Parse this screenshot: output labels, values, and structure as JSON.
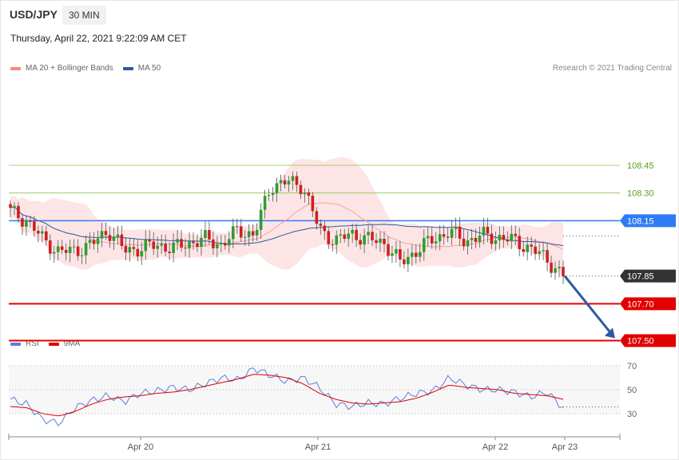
{
  "header": {
    "pair": "USD/JPY",
    "timeframe": "30 MIN",
    "datetime": "Thursday, April 22, 2021 9:22:09 AM CET",
    "credit": "Research © 2021 Trading Central"
  },
  "legend_main": [
    {
      "label": "MA 20 + Bollinger Bands",
      "color": "#f28b82"
    },
    {
      "label": "MA 50",
      "color": "#2c5aa0"
    }
  ],
  "legend_rsi": [
    {
      "label": "RSI",
      "color": "#5b7fd6"
    },
    {
      "label": "9MA",
      "color": "#e00000"
    }
  ],
  "colors": {
    "up_candle": "#2e9e2e",
    "down_candle": "#d11f1f",
    "bollinger_fill": "#fde0e0",
    "ma20": "#f4a0a0",
    "ma50": "#2c5aa0",
    "resistance": "#8bc34a",
    "pivot": "#2f7bf5",
    "support": "#e00000",
    "current": "#333333",
    "arrow": "#2c5aa0"
  },
  "chart_data": [
    {
      "type": "candlestick",
      "title": "USD/JPY 30 MIN",
      "x_ticks": [
        "Apr 20",
        "Apr 21",
        "Apr 22",
        "Apr 23"
      ],
      "ylim": [
        107.45,
        108.62
      ],
      "price_points": [
        [
          "Apr 19 13:00",
          108.2
        ],
        [
          "Apr 19 15:00",
          108.15
        ],
        [
          "Apr 19 17:00",
          108.05
        ],
        [
          "Apr 19 19:00",
          107.98
        ],
        [
          "Apr 19 21:00",
          107.99
        ],
        [
          "Apr 19 23:00",
          108.02
        ],
        [
          "Apr 20 01:00",
          108.1
        ],
        [
          "Apr 20 03:00",
          107.99
        ],
        [
          "Apr 20 05:00",
          108.0
        ],
        [
          "Apr 20 07:00",
          108.02
        ],
        [
          "Apr 20 09:00",
          108.0
        ],
        [
          "Apr 20 11:00",
          108.03
        ],
        [
          "Apr 20 13:00",
          108.05
        ],
        [
          "Apr 20 15:00",
          108.02
        ],
        [
          "Apr 20 17:00",
          108.1
        ],
        [
          "Apr 20 19:00",
          108.07
        ],
        [
          "Apr 20 21:00",
          108.34
        ],
        [
          "Apr 20 23:00",
          108.36
        ],
        [
          "Apr 21 01:00",
          108.34
        ],
        [
          "Apr 21 03:00",
          108.1
        ],
        [
          "Apr 21 05:00",
          108.04
        ],
        [
          "Apr 21 07:00",
          108.08
        ],
        [
          "Apr 21 09:00",
          108.05
        ],
        [
          "Apr 21 11:00",
          108.03
        ],
        [
          "Apr 21 13:00",
          107.92
        ],
        [
          "Apr 21 15:00",
          107.99
        ],
        [
          "Apr 21 17:00",
          108.05
        ],
        [
          "Apr 21 19:00",
          108.09
        ],
        [
          "Apr 21 21:00",
          108.04
        ],
        [
          "Apr 21 23:00",
          108.07
        ],
        [
          "Apr 22 01:00",
          108.06
        ],
        [
          "Apr 22 03:00",
          108.04
        ],
        [
          "Apr 22 05:00",
          108.0
        ],
        [
          "Apr 22 07:00",
          107.94
        ],
        [
          "Apr 22 09:00",
          107.85
        ]
      ],
      "price_levels": [
        {
          "label": "108.45",
          "value": 108.45,
          "kind": "resistance"
        },
        {
          "label": "108.30",
          "value": 108.3,
          "kind": "resistance"
        },
        {
          "label": "108.15",
          "value": 108.15,
          "kind": "pivot"
        },
        {
          "label": "107.85",
          "value": 107.85,
          "kind": "current"
        },
        {
          "label": "107.70",
          "value": 107.7,
          "kind": "support"
        },
        {
          "label": "107.50",
          "value": 107.5,
          "kind": "support"
        }
      ],
      "projection": {
        "from": 107.85,
        "to": 107.5,
        "direction": "down"
      }
    },
    {
      "type": "line",
      "title": "RSI",
      "ylim": [
        20,
        75
      ],
      "y_ticks": [
        "70",
        "50",
        "30"
      ],
      "series": [
        {
          "name": "RSI",
          "values": [
            42,
            38,
            25,
            22,
            35,
            41,
            45,
            40,
            47,
            49,
            52,
            50,
            55,
            60,
            58,
            68,
            62,
            57,
            60,
            52,
            38,
            36,
            39,
            38,
            43,
            47,
            49,
            60,
            54,
            50,
            50,
            48,
            44,
            48,
            35
          ]
        },
        {
          "name": "9MA",
          "values": [
            36,
            35,
            30,
            28,
            32,
            38,
            42,
            44,
            45,
            47,
            48,
            50,
            53,
            56,
            59,
            63,
            62,
            60,
            55,
            47,
            42,
            39,
            38,
            39,
            40,
            43,
            48,
            54,
            52,
            51,
            50,
            47,
            46,
            45,
            42
          ]
        }
      ]
    }
  ]
}
